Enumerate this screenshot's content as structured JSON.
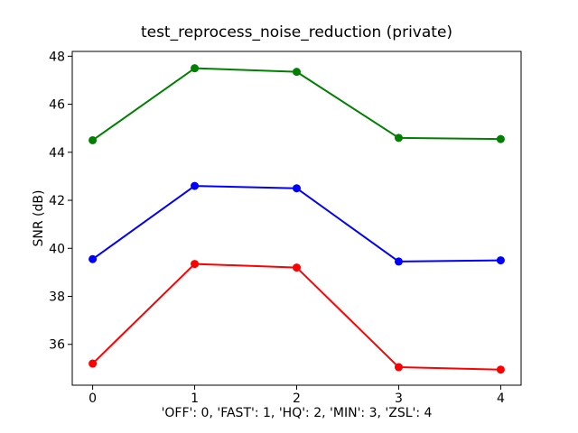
{
  "chart_data": {
    "type": "line",
    "title": "test_reprocess_noise_reduction (private)",
    "xlabel": "'OFF': 0, 'FAST': 1, 'HQ': 2, 'MIN': 3, 'ZSL': 4",
    "ylabel": "SNR (dB)",
    "x": [
      0,
      1,
      2,
      3,
      4
    ],
    "xticks": [
      0,
      1,
      2,
      3,
      4
    ],
    "yticks": [
      36,
      38,
      40,
      42,
      44,
      46,
      48
    ],
    "xlim": [
      -0.2,
      4.2
    ],
    "ylim": [
      34.3,
      48.2
    ],
    "grid": false,
    "legend": "none",
    "marker": "circle",
    "series": [
      {
        "name": "green",
        "color": "#008000",
        "values": [
          44.5,
          47.5,
          47.35,
          44.6,
          44.55
        ]
      },
      {
        "name": "blue",
        "color": "#0000ff",
        "values": [
          39.55,
          42.6,
          42.5,
          39.45,
          39.5
        ]
      },
      {
        "name": "red",
        "color": "#ff0000",
        "values": [
          35.2,
          39.35,
          39.2,
          35.05,
          34.95
        ]
      }
    ]
  }
}
